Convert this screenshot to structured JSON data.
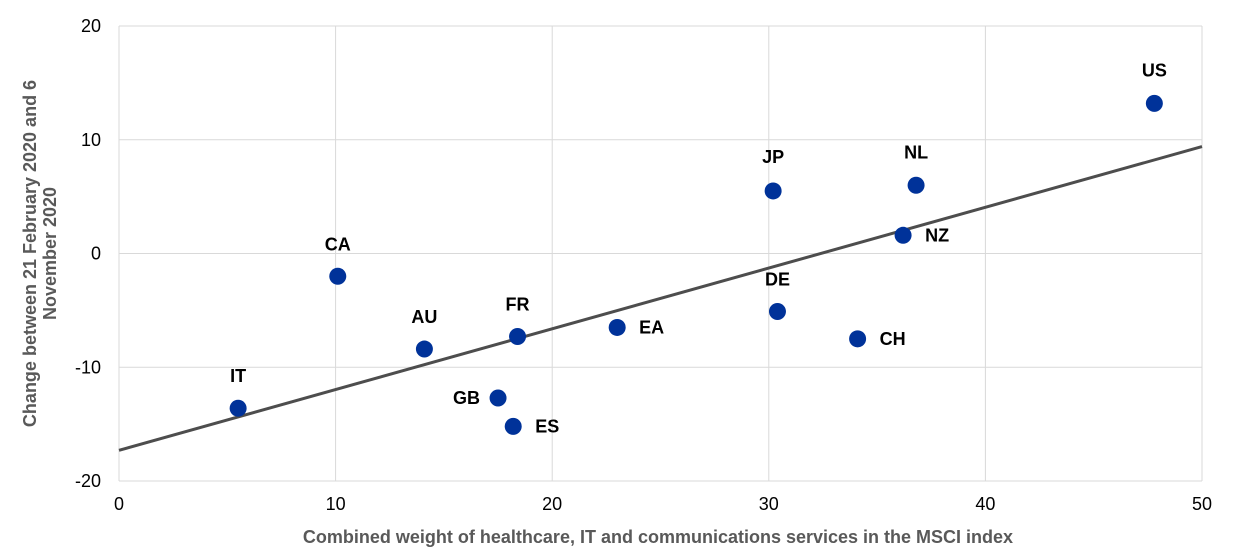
{
  "chart_data": {
    "type": "scatter",
    "title": "",
    "xlabel": "Combined weight of healthcare, IT and communications services in the MSCI index",
    "ylabel": "Change between 21 February 2020 and 6 November 2020",
    "xlim": [
      0,
      50
    ],
    "ylim": [
      -20,
      20
    ],
    "x_ticks": [
      "0",
      "10",
      "20",
      "30",
      "40",
      "50"
    ],
    "y_ticks": [
      "20",
      "10",
      "0",
      "-10",
      "-20"
    ],
    "grid": true,
    "points": [
      {
        "label": "IT",
        "x": 5.5,
        "y": -13.6
      },
      {
        "label": "CA",
        "x": 10.1,
        "y": -2.0
      },
      {
        "label": "AU",
        "x": 14.1,
        "y": -8.4
      },
      {
        "label": "GB",
        "x": 17.5,
        "y": -12.7
      },
      {
        "label": "ES",
        "x": 18.2,
        "y": -15.2
      },
      {
        "label": "FR",
        "x": 18.4,
        "y": -7.3
      },
      {
        "label": "EA",
        "x": 23.0,
        "y": -6.5
      },
      {
        "label": "JP",
        "x": 30.2,
        "y": 5.5
      },
      {
        "label": "DE",
        "x": 30.4,
        "y": -5.1
      },
      {
        "label": "CH",
        "x": 34.1,
        "y": -7.5
      },
      {
        "label": "NZ",
        "x": 36.2,
        "y": 1.6
      },
      {
        "label": "NL",
        "x": 36.8,
        "y": 6.0
      },
      {
        "label": "US",
        "x": 47.8,
        "y": 13.2
      }
    ],
    "trendline": {
      "x": [
        0,
        50
      ],
      "y": [
        -17.3,
        9.4
      ]
    },
    "colors": {
      "points": "#003299",
      "trendline": "#4d4d4d",
      "grid": "#d9d9d9"
    }
  }
}
